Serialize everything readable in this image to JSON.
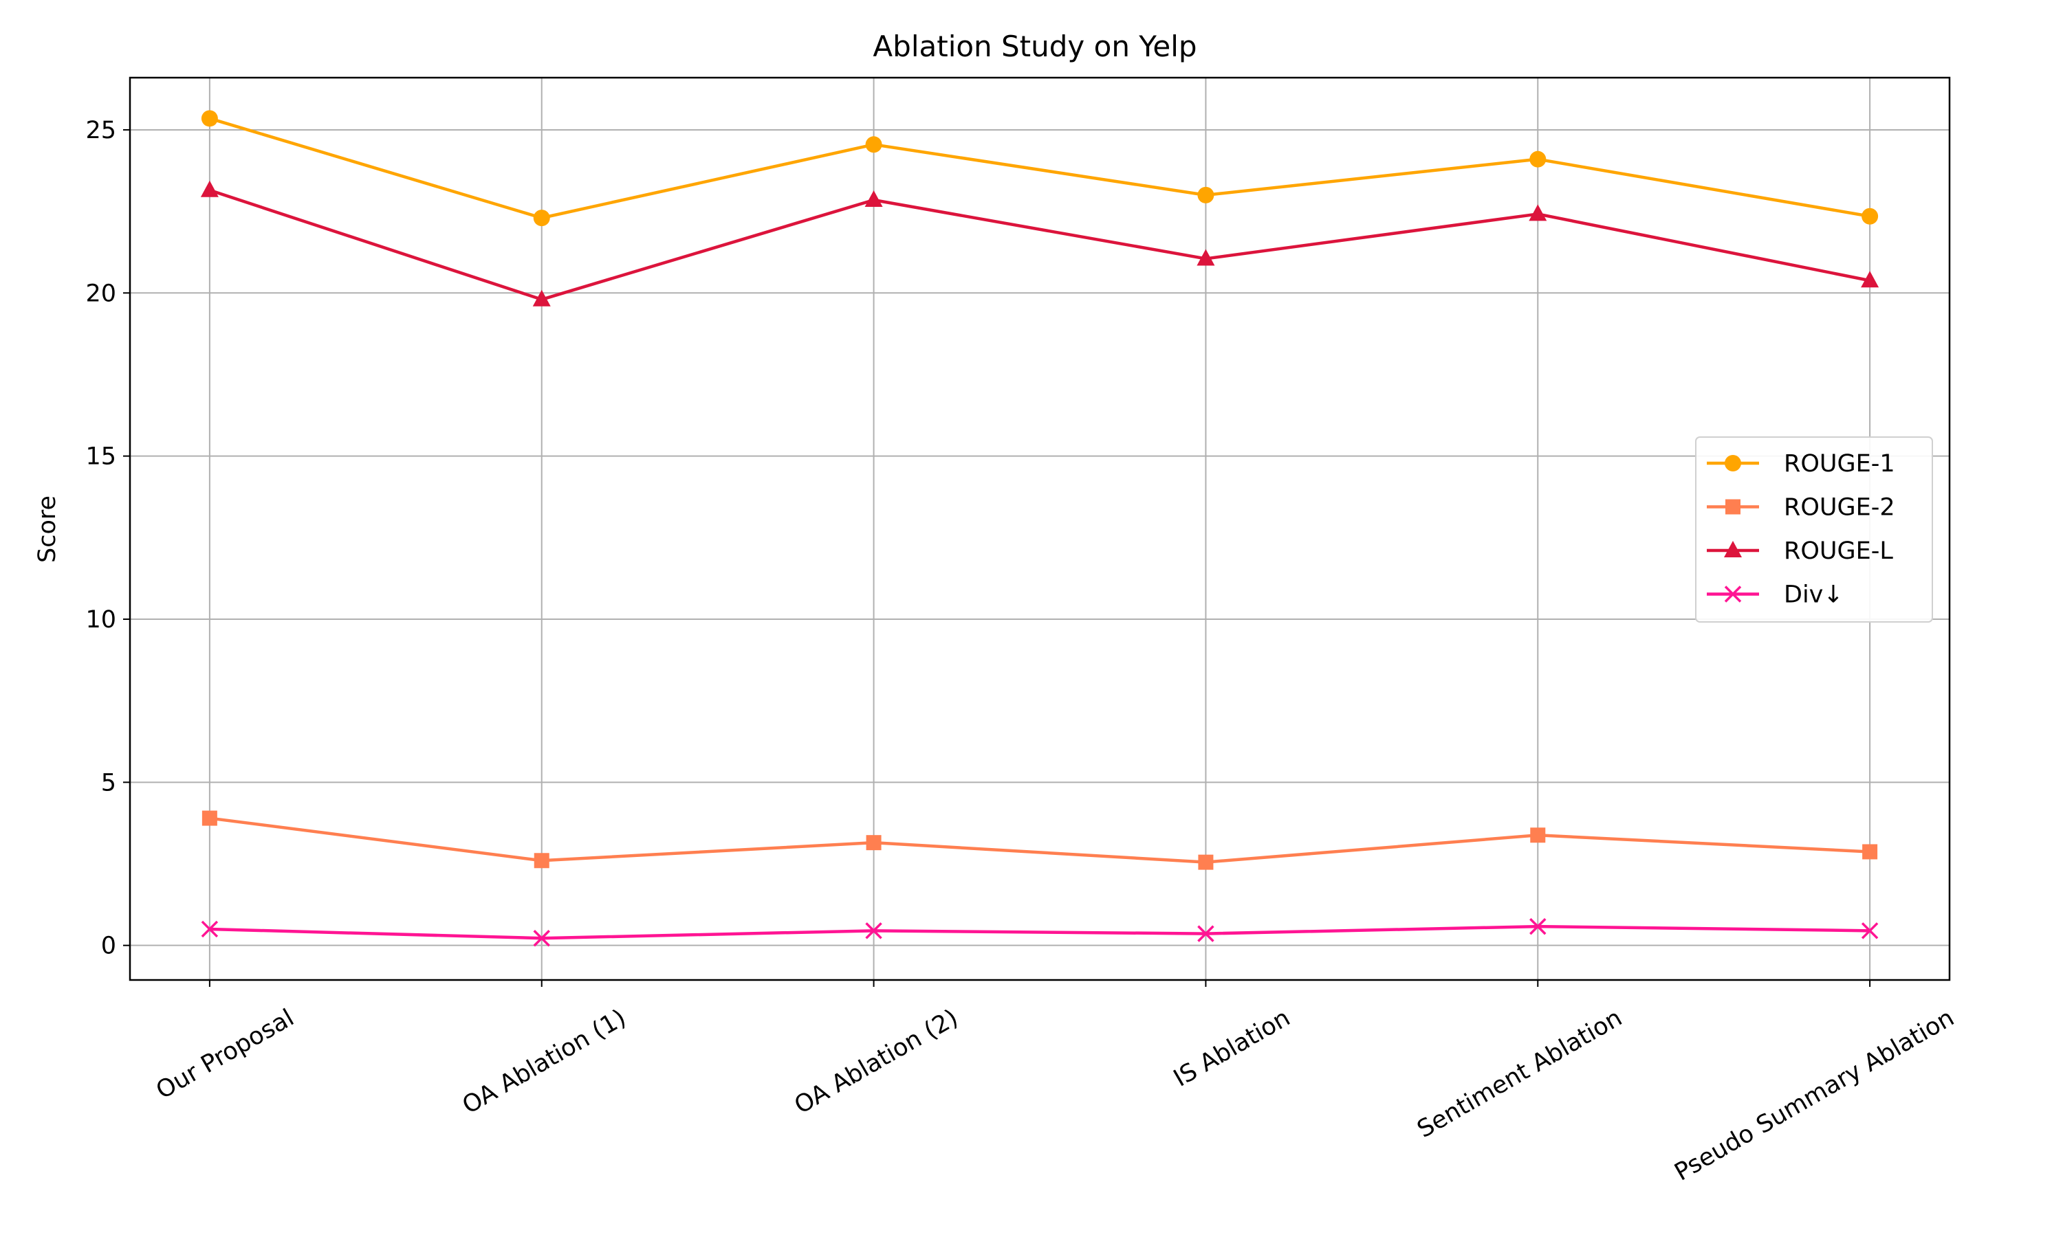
{
  "chart_data": {
    "type": "line",
    "title": "Ablation Study on Yelp",
    "xlabel": "",
    "ylabel": "Score",
    "categories": [
      "Our Proposal",
      "OA Ablation (1)",
      "OA Ablation (2)",
      "IS Ablation",
      "Sentiment Ablation",
      "Pseudo Summary Ablation"
    ],
    "ylim": [
      -1.06,
      26.6
    ],
    "yticks": [
      0,
      5,
      10,
      15,
      20,
      25
    ],
    "grid": true,
    "legend_position": "center-right",
    "series": [
      {
        "name": "ROUGE-1",
        "values": [
          25.35,
          22.3,
          24.55,
          23.0,
          24.1,
          22.35
        ],
        "color": "#ffa500",
        "marker": "circle"
      },
      {
        "name": "ROUGE-2",
        "values": [
          3.9,
          2.6,
          3.15,
          2.55,
          3.38,
          2.87
        ],
        "color": "#ff7f50",
        "marker": "square"
      },
      {
        "name": "ROUGE-L",
        "values": [
          23.15,
          19.8,
          22.85,
          21.05,
          22.42,
          20.38
        ],
        "color": "#dc143c",
        "marker": "triangle"
      },
      {
        "name": "Div↓",
        "values": [
          0.5,
          0.22,
          0.45,
          0.36,
          0.58,
          0.45
        ],
        "color": "#ff1493",
        "marker": "x"
      }
    ]
  }
}
